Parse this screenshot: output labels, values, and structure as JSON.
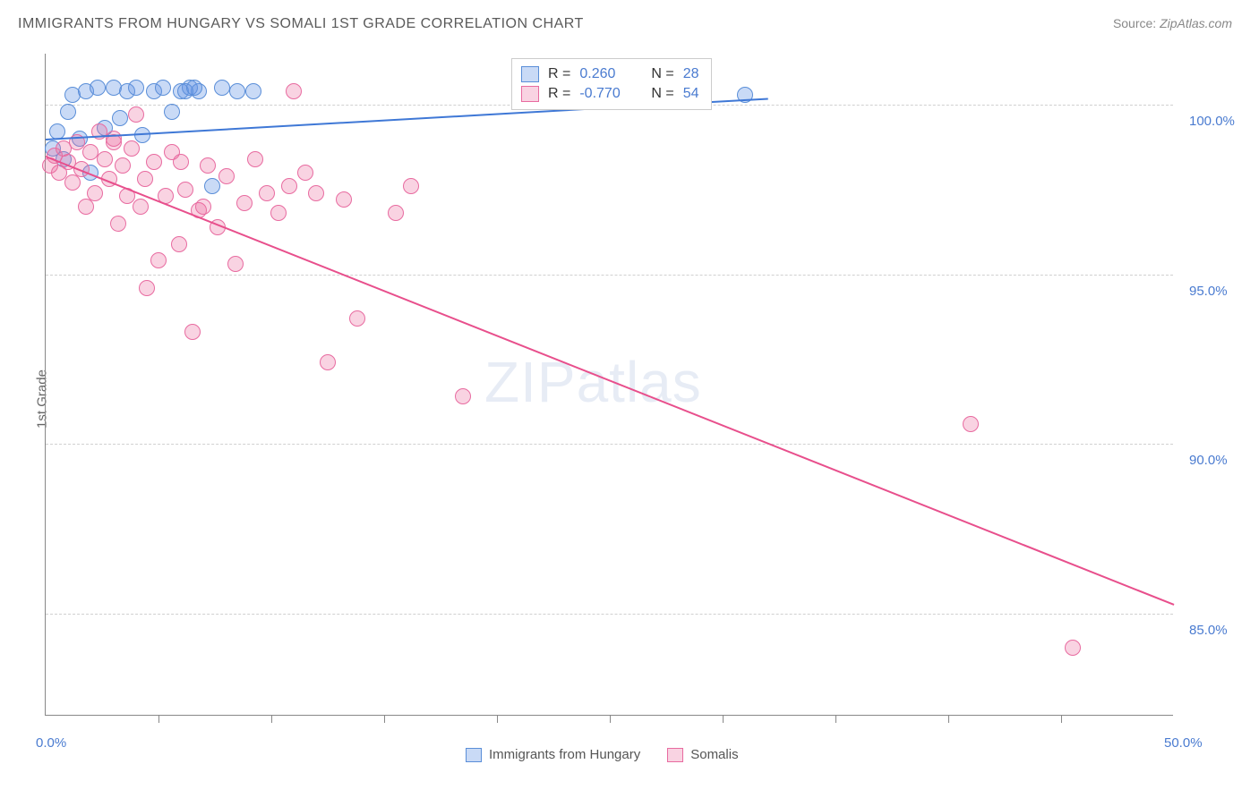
{
  "title": "IMMIGRANTS FROM HUNGARY VS SOMALI 1ST GRADE CORRELATION CHART",
  "source_label": "Source:",
  "source_value": "ZipAtlas.com",
  "ylabel": "1st Grade",
  "watermark_bold": "ZIP",
  "watermark_thin": "atlas",
  "chart": {
    "type": "scatter",
    "xlim": [
      0,
      50
    ],
    "ylim": [
      82,
      101.5
    ],
    "yticks": [
      {
        "v": 100,
        "label": "100.0%"
      },
      {
        "v": 95,
        "label": "95.0%"
      },
      {
        "v": 90,
        "label": "90.0%"
      },
      {
        "v": 85,
        "label": "85.0%"
      }
    ],
    "xticks_major": [
      {
        "v": 0,
        "label": "0.0%"
      },
      {
        "v": 50,
        "label": "50.0%"
      }
    ],
    "xticks_minor": [
      5,
      10,
      15,
      20,
      25,
      30,
      35,
      40,
      45
    ],
    "background_color": "#ffffff",
    "grid_color": "#d0d0d0",
    "series": [
      {
        "name": "Immigrants from Hungary",
        "color_fill": "rgba(100,150,230,0.35)",
        "color_stroke": "#5a8ed8",
        "marker_radius": 9,
        "trend": {
          "x0": 0,
          "y0": 99.0,
          "x1": 32,
          "y1": 100.2,
          "color": "#3f78d6",
          "width": 2
        },
        "R": "0.260",
        "N": "28",
        "points": [
          [
            0.3,
            98.7
          ],
          [
            0.5,
            99.2
          ],
          [
            0.8,
            98.4
          ],
          [
            1.0,
            99.8
          ],
          [
            1.2,
            100.3
          ],
          [
            1.5,
            99.0
          ],
          [
            1.8,
            100.4
          ],
          [
            2.0,
            98.0
          ],
          [
            2.3,
            100.5
          ],
          [
            2.6,
            99.3
          ],
          [
            3.0,
            100.5
          ],
          [
            3.3,
            99.6
          ],
          [
            3.6,
            100.4
          ],
          [
            4.0,
            100.5
          ],
          [
            4.3,
            99.1
          ],
          [
            4.8,
            100.4
          ],
          [
            5.2,
            100.5
          ],
          [
            5.6,
            99.8
          ],
          [
            6.0,
            100.4
          ],
          [
            6.4,
            100.5
          ],
          [
            6.8,
            100.4
          ],
          [
            7.4,
            97.6
          ],
          [
            7.8,
            100.5
          ],
          [
            8.5,
            100.4
          ],
          [
            6.2,
            100.4
          ],
          [
            6.6,
            100.5
          ],
          [
            9.2,
            100.4
          ],
          [
            31.0,
            100.3
          ]
        ]
      },
      {
        "name": "Somalis",
        "color_fill": "rgba(235,110,160,0.30)",
        "color_stroke": "#e86ba0",
        "marker_radius": 9,
        "trend": {
          "x0": 0,
          "y0": 98.5,
          "x1": 50,
          "y1": 85.3,
          "color": "#e84f8c",
          "width": 2
        },
        "R": "-0.770",
        "N": "54",
        "points": [
          [
            0.2,
            98.2
          ],
          [
            0.4,
            98.5
          ],
          [
            0.6,
            98.0
          ],
          [
            0.8,
            98.7
          ],
          [
            1.0,
            98.3
          ],
          [
            1.2,
            97.7
          ],
          [
            1.4,
            98.9
          ],
          [
            1.6,
            98.1
          ],
          [
            1.8,
            97.0
          ],
          [
            2.0,
            98.6
          ],
          [
            2.2,
            97.4
          ],
          [
            2.4,
            99.2
          ],
          [
            2.6,
            98.4
          ],
          [
            2.8,
            97.8
          ],
          [
            3.0,
            98.9
          ],
          [
            3.2,
            96.5
          ],
          [
            3.4,
            98.2
          ],
          [
            3.6,
            97.3
          ],
          [
            3.8,
            98.7
          ],
          [
            4.0,
            99.7
          ],
          [
            4.2,
            97.0
          ],
          [
            4.5,
            94.6
          ],
          [
            4.8,
            98.3
          ],
          [
            5.0,
            95.4
          ],
          [
            5.3,
            97.3
          ],
          [
            5.6,
            98.6
          ],
          [
            5.9,
            95.9
          ],
          [
            6.2,
            97.5
          ],
          [
            6.5,
            93.3
          ],
          [
            6.8,
            96.9
          ],
          [
            7.2,
            98.2
          ],
          [
            7.6,
            96.4
          ],
          [
            8.0,
            97.9
          ],
          [
            8.4,
            95.3
          ],
          [
            8.8,
            97.1
          ],
          [
            9.3,
            98.4
          ],
          [
            9.8,
            97.4
          ],
          [
            10.3,
            96.8
          ],
          [
            10.8,
            97.6
          ],
          [
            11.0,
            100.4
          ],
          [
            11.5,
            98.0
          ],
          [
            12.0,
            97.4
          ],
          [
            12.5,
            92.4
          ],
          [
            13.2,
            97.2
          ],
          [
            13.8,
            93.7
          ],
          [
            15.5,
            96.8
          ],
          [
            16.2,
            97.6
          ],
          [
            18.5,
            91.4
          ],
          [
            41.0,
            90.6
          ],
          [
            45.5,
            84.0
          ],
          [
            3.0,
            99.0
          ],
          [
            4.4,
            97.8
          ],
          [
            6.0,
            98.3
          ],
          [
            7.0,
            97.0
          ]
        ]
      }
    ],
    "legend_box": {
      "rows": [
        {
          "swatch_fill": "rgba(100,150,230,0.35)",
          "swatch_stroke": "#5a8ed8",
          "r_label": "R =",
          "r_val": "0.260",
          "n_label": "N =",
          "n_val": "28"
        },
        {
          "swatch_fill": "rgba(235,110,160,0.30)",
          "swatch_stroke": "#e86ba0",
          "r_label": "R =",
          "r_val": "-0.770",
          "n_label": "N =",
          "n_val": "54"
        }
      ]
    },
    "bottom_legend": [
      {
        "swatch_fill": "rgba(100,150,230,0.35)",
        "swatch_stroke": "#5a8ed8",
        "label": "Immigrants from Hungary"
      },
      {
        "swatch_fill": "rgba(235,110,160,0.30)",
        "swatch_stroke": "#e86ba0",
        "label": "Somalis"
      }
    ]
  }
}
